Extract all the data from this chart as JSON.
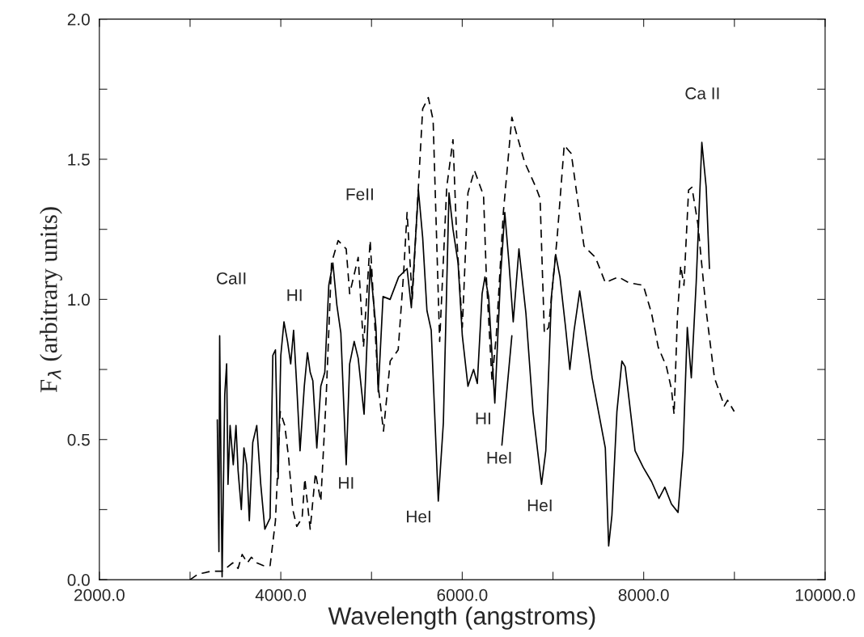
{
  "chart_data": {
    "type": "line",
    "xlabel": "Wavelength (angstroms)",
    "ylabel": "F$_{λ}$ (arbitrary units)",
    "xlim": [
      2000,
      10000
    ],
    "ylim": [
      0,
      2.0
    ],
    "xticks": [
      {
        "value": 2000,
        "label": "2000.0"
      },
      {
        "value": 3000,
        "label": null
      },
      {
        "value": 4000,
        "label": "4000.0"
      },
      {
        "value": 5000,
        "label": null
      },
      {
        "value": 6000,
        "label": "6000.0"
      },
      {
        "value": 7000,
        "label": null
      },
      {
        "value": 8000,
        "label": "8000.0"
      },
      {
        "value": 9000,
        "label": null
      },
      {
        "value": 10000,
        "label": "10000.0"
      }
    ],
    "yticks": [
      {
        "value": 0,
        "label": "0.0"
      },
      {
        "value": 0.25,
        "label": null
      },
      {
        "value": 0.5,
        "label": "0.5"
      },
      {
        "value": 0.75,
        "label": null
      },
      {
        "value": 1.0,
        "label": "1.0"
      },
      {
        "value": 1.25,
        "label": null
      },
      {
        "value": 1.5,
        "label": "1.5"
      },
      {
        "value": 1.75,
        "label": null
      },
      {
        "value": 2.0,
        "label": "2.0"
      }
    ],
    "grid": false,
    "legend": false,
    "series": [
      {
        "color": "#000000",
        "line_style": "solid",
        "x": [
          3300,
          3318,
          3326,
          3353,
          3382,
          3403,
          3418,
          3441,
          3476,
          3506,
          3529,
          3565,
          3594,
          3624,
          3653,
          3691,
          3735,
          3779,
          3824,
          3882,
          3912,
          3941,
          3971,
          4000,
          4035,
          4074,
          4109,
          4141,
          4176,
          4212,
          4259,
          4294,
          4324,
          4353,
          4397,
          4441,
          4485,
          4529,
          4574,
          4618,
          4662,
          4721,
          4759,
          4809,
          4853,
          4918,
          4985,
          5049,
          5074,
          5127,
          5205,
          5299,
          5392,
          5439,
          5517,
          5564,
          5611,
          5658,
          5736,
          5792,
          5854,
          5898,
          5954,
          6001,
          6063,
          6125,
          6166,
          6219,
          6250,
          6291,
          6359,
          6422,
          6469,
          6515,
          6562,
          6625,
          6702,
          6780,
          6874,
          6921,
          6983,
          7030,
          7077,
          7139,
          7186,
          7233,
          7295,
          7432,
          7577,
          7614,
          7650,
          7705,
          7760,
          7796,
          7840,
          7905,
          7996,
          8087,
          8168,
          8233,
          8306,
          8379,
          8434,
          8481,
          8525,
          8579,
          8641,
          8689,
          8725
        ],
        "values": [
          0.57,
          0.1,
          0.87,
          0.01,
          0.66,
          0.77,
          0.34,
          0.55,
          0.41,
          0.55,
          0.39,
          0.25,
          0.47,
          0.41,
          0.21,
          0.49,
          0.55,
          0.34,
          0.18,
          0.22,
          0.8,
          0.82,
          0.36,
          0.8,
          0.92,
          0.85,
          0.77,
          0.89,
          0.69,
          0.46,
          0.69,
          0.81,
          0.74,
          0.71,
          0.47,
          0.69,
          0.74,
          1.05,
          1.13,
          0.98,
          0.88,
          0.41,
          0.77,
          0.85,
          0.79,
          0.59,
          1.12,
          0.9,
          0.67,
          1.01,
          1.0,
          1.08,
          1.11,
          0.97,
          1.39,
          1.22,
          0.96,
          0.89,
          0.28,
          0.56,
          1.38,
          1.25,
          1.13,
          0.87,
          0.69,
          0.75,
          0.7,
          1.02,
          1.08,
          1.01,
          0.63,
          1.08,
          1.31,
          1.13,
          0.92,
          1.18,
          0.95,
          0.6,
          0.34,
          0.46,
          1.01,
          1.16,
          1.08,
          0.9,
          0.75,
          0.89,
          1.03,
          0.72,
          0.47,
          0.12,
          0.23,
          0.6,
          0.78,
          0.76,
          0.64,
          0.46,
          0.4,
          0.35,
          0.29,
          0.33,
          0.27,
          0.24,
          0.46,
          0.9,
          0.72,
          1.06,
          1.56,
          1.4,
          1.11
        ]
      },
      {
        "color": "#000000",
        "line_style": "dashed",
        "x": [
          3000,
          3088,
          3235,
          3353,
          3471,
          3529,
          3574,
          3632,
          3676,
          3735,
          3809,
          3882,
          3941,
          3994,
          4044,
          4088,
          4132,
          4176,
          4235,
          4265,
          4324,
          4382,
          4441,
          4500,
          4559,
          4632,
          4721,
          4759,
          4853,
          4912,
          4985,
          5074,
          5132,
          5206,
          5294,
          5353,
          5392,
          5449,
          5564,
          5626,
          5679,
          5751,
          5829,
          5898,
          5938,
          6001,
          6063,
          6135,
          6235,
          6266,
          6328,
          6375,
          6453,
          6547,
          6687,
          6812,
          6858,
          6905,
          6952,
          7046,
          7124,
          7202,
          7342,
          7468,
          7577,
          7650,
          7723,
          7832,
          7996,
          8087,
          8160,
          8251,
          8306,
          8335,
          8372,
          8408,
          8444,
          8495,
          8532,
          8597,
          8689,
          8780,
          8889,
          8925,
          8998
        ],
        "values": [
          0.0,
          0.02,
          0.03,
          0.03,
          0.06,
          0.04,
          0.09,
          0.06,
          0.08,
          0.06,
          0.05,
          0.05,
          0.21,
          0.6,
          0.55,
          0.43,
          0.25,
          0.19,
          0.22,
          0.36,
          0.18,
          0.38,
          0.28,
          0.65,
          1.13,
          1.21,
          1.18,
          1.02,
          1.15,
          0.83,
          1.21,
          0.69,
          0.53,
          0.78,
          0.82,
          1.09,
          1.31,
          1.0,
          1.68,
          1.72,
          1.64,
          0.85,
          1.4,
          1.57,
          1.23,
          0.9,
          1.38,
          1.46,
          1.37,
          1.08,
          0.71,
          0.87,
          1.31,
          1.65,
          1.49,
          1.4,
          1.36,
          0.88,
          0.9,
          1.22,
          1.55,
          1.52,
          1.19,
          1.15,
          1.06,
          1.07,
          1.08,
          1.06,
          1.05,
          0.95,
          0.83,
          0.76,
          0.68,
          0.59,
          0.94,
          1.12,
          1.05,
          1.39,
          1.4,
          1.27,
          0.96,
          0.72,
          0.62,
          0.64,
          0.6
        ]
      },
      {
        "color": "#000000",
        "line_style": "solid",
        "x": [
          6437,
          6547
        ],
        "values": [
          0.48,
          0.87
        ]
      }
    ],
    "annotations": [
      "CaII",
      "HI",
      "FeII",
      "HI",
      "HeI",
      "HI",
      "HeI",
      "HeI",
      "Ca II"
    ]
  }
}
